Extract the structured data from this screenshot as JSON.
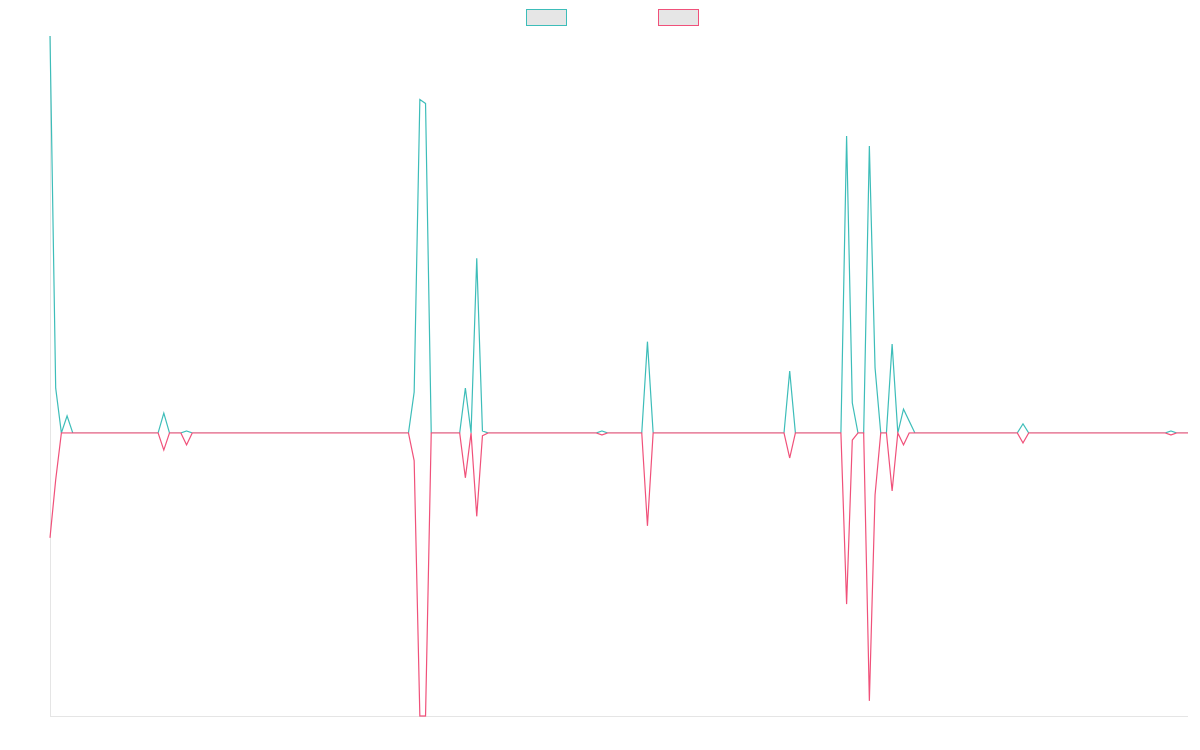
{
  "chart_data": {
    "type": "line",
    "legend": "top",
    "ylim": [
      -71.3,
      100
    ],
    "series": [
      {
        "color": "#3dbdb9",
        "values": [
          100,
          11.3,
          0,
          4.3,
          0,
          0,
          0,
          0,
          0,
          0,
          0,
          0,
          0,
          0,
          0,
          0,
          0,
          0,
          0,
          0,
          5,
          0,
          0,
          0,
          0.5,
          0,
          0,
          0,
          0,
          0,
          0,
          0,
          0,
          0,
          0,
          0,
          0,
          0,
          0,
          0,
          0,
          0,
          0,
          0,
          0,
          0,
          0,
          0,
          0,
          0,
          0,
          0,
          0,
          0,
          0,
          0,
          0,
          0,
          0,
          0,
          0,
          0,
          0,
          0,
          10.3,
          84,
          83,
          0,
          0,
          0,
          0,
          0,
          0,
          11.3,
          0,
          44,
          0.5,
          0,
          0,
          0,
          0,
          0,
          0,
          0,
          0,
          0,
          0,
          0,
          0,
          0,
          0,
          0,
          0,
          0,
          0,
          0,
          0,
          0.5,
          0,
          0,
          0,
          0,
          0,
          0,
          0,
          23,
          0,
          0,
          0,
          0,
          0,
          0,
          0,
          0,
          0,
          0,
          0,
          0,
          0,
          0,
          0,
          0,
          0,
          0,
          0,
          0,
          0,
          0,
          0,
          0,
          15.6,
          0,
          0,
          0,
          0,
          0,
          0,
          0,
          0,
          0,
          74.8,
          7.6,
          0,
          0,
          72.3,
          16.4,
          0,
          0,
          22.4,
          0,
          6,
          3,
          0,
          0,
          0,
          0,
          0,
          0,
          0,
          0,
          0,
          0,
          0,
          0,
          0,
          0,
          0,
          0,
          0,
          0,
          0,
          2.3,
          0,
          0,
          0,
          0,
          0,
          0,
          0,
          0,
          0,
          0,
          0,
          0,
          0,
          0,
          0,
          0,
          0,
          0,
          0,
          0,
          0,
          0,
          0,
          0,
          0,
          0.5,
          0,
          0,
          0
        ]
      },
      {
        "color": "#f0517a",
        "values": [
          -26.4,
          -11.8,
          0,
          0,
          0,
          0,
          0,
          0,
          0,
          0,
          0,
          0,
          0,
          0,
          0,
          0,
          0,
          0,
          0,
          0,
          -4.3,
          0,
          0,
          0,
          -3,
          0,
          0,
          0,
          0,
          0,
          0,
          0,
          0,
          0,
          0,
          0,
          0,
          0,
          0,
          0,
          0,
          0,
          0,
          0,
          0,
          0,
          0,
          0,
          0,
          0,
          0,
          0,
          0,
          0,
          0,
          0,
          0,
          0,
          0,
          0,
          0,
          0,
          0,
          0,
          -7,
          -71.3,
          -71.3,
          0,
          0,
          0,
          0,
          0,
          0,
          -11.3,
          0,
          -21,
          -0.7,
          0,
          0,
          0,
          0,
          0,
          0,
          0,
          0,
          0,
          0,
          0,
          0,
          0,
          0,
          0,
          0,
          0,
          0,
          0,
          0,
          -0.5,
          0,
          0,
          0,
          0,
          0,
          0,
          0,
          -23.4,
          0,
          0,
          0,
          0,
          0,
          0,
          0,
          0,
          0,
          0,
          0,
          0,
          0,
          0,
          0,
          0,
          0,
          0,
          0,
          0,
          0,
          0,
          0,
          0,
          -6.3,
          0,
          0,
          0,
          0,
          0,
          0,
          0,
          0,
          0,
          -43.1,
          -1.8,
          0,
          0,
          -67.5,
          -15.6,
          0,
          0,
          -14.6,
          0,
          -3,
          0,
          0,
          0,
          0,
          0,
          0,
          0,
          0,
          0,
          0,
          0,
          0,
          0,
          0,
          0,
          0,
          0,
          0,
          0,
          0,
          -2.5,
          0,
          0,
          0,
          0,
          0,
          0,
          0,
          0,
          0,
          0,
          0,
          0,
          0,
          0,
          0,
          0,
          0,
          0,
          0,
          0,
          0,
          0,
          0,
          0,
          0,
          -0.5,
          0,
          0,
          0
        ]
      }
    ]
  }
}
